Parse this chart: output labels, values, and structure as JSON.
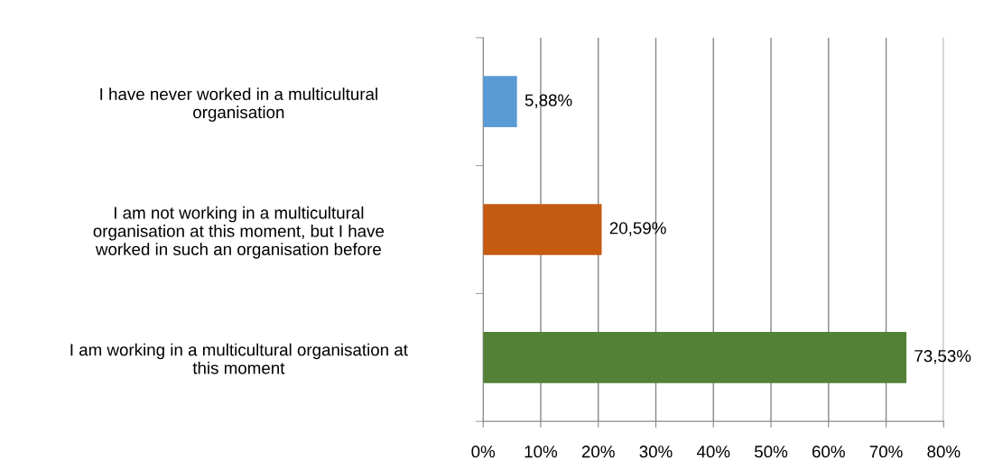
{
  "chart_data": {
    "type": "bar",
    "orientation": "horizontal",
    "categories": [
      "I have never worked in a multicultural\norganisation",
      "I am not working in a multicultural\norganisation at this moment, but I have\nworked in such an organisation before",
      "I am working in a multicultural organisation at\nthis moment"
    ],
    "values": [
      5.88,
      20.59,
      73.53
    ],
    "colors": [
      "#5b9bd5",
      "#c55a11",
      "#538135"
    ],
    "value_labels": [
      "5,88%",
      "20,59%",
      "73,53%"
    ],
    "xlim": [
      0,
      80
    ],
    "xticks": [
      {
        "value": 0,
        "label": "0%"
      },
      {
        "value": 10,
        "label": "10%"
      },
      {
        "value": 20,
        "label": "20%"
      },
      {
        "value": 30,
        "label": "30%"
      },
      {
        "value": 40,
        "label": "40%"
      },
      {
        "value": 50,
        "label": "50%"
      },
      {
        "value": 60,
        "label": "60%"
      },
      {
        "value": 70,
        "label": "70%"
      },
      {
        "value": 80,
        "label": "80%"
      }
    ],
    "grid": "x",
    "legend": false
  }
}
